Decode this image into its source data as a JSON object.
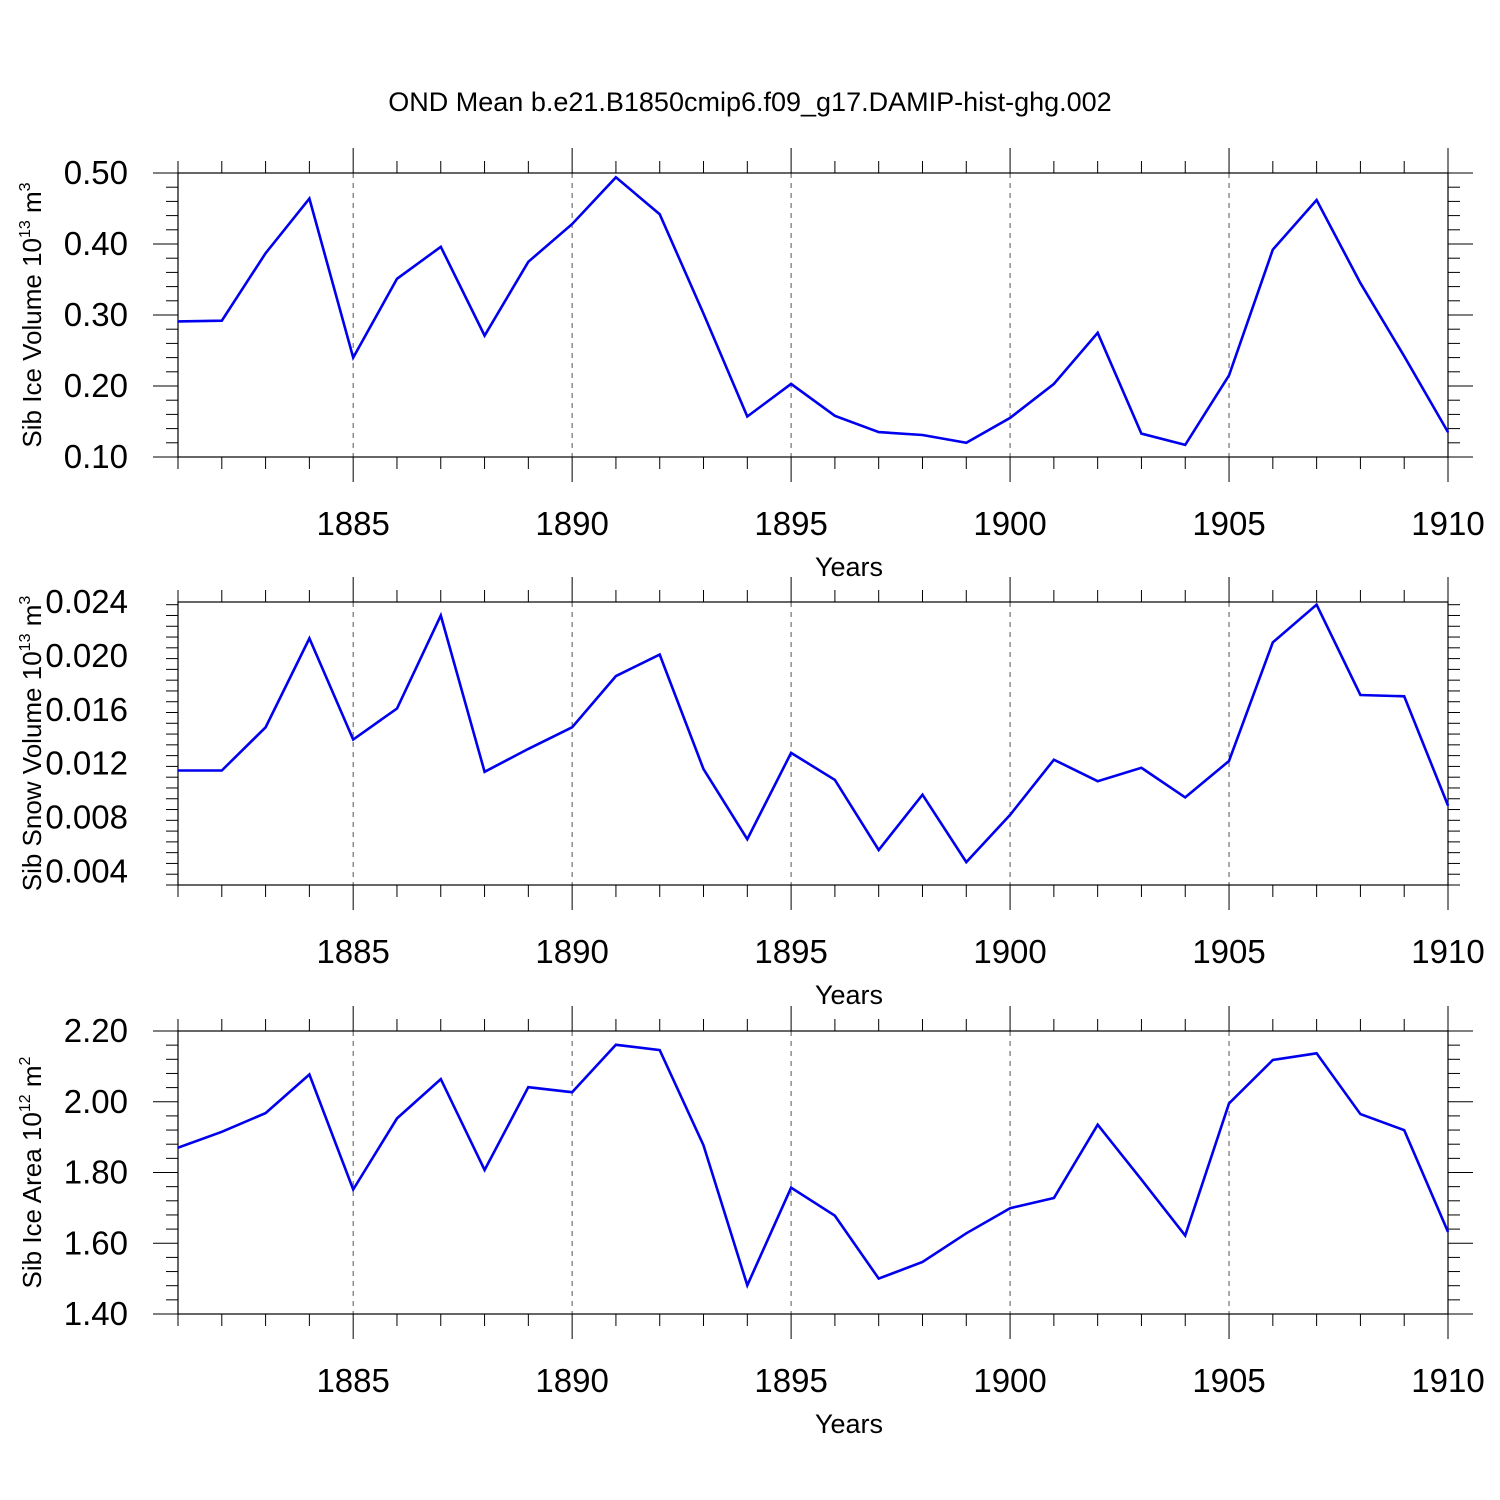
{
  "title": "OND Mean b.e21.B1850cmip6.f09_g17.DAMIP-hist-ghg.002",
  "line_color": "#0000ee",
  "chart_data": [
    {
      "type": "line",
      "ylabel": {
        "prefix": "Sib Ice Volume 10",
        "exp": "13",
        "unit": " m",
        "unit_exp": "3"
      },
      "xlabel": "Years",
      "xlim": [
        1881,
        1910
      ],
      "ylim": [
        0.1,
        0.5
      ],
      "yticks": [
        0.1,
        0.2,
        0.3,
        0.4,
        0.5
      ],
      "ytick_labels": [
        "0.10",
        "0.20",
        "0.30",
        "0.40",
        "0.50"
      ],
      "xticks": [
        1885,
        1890,
        1895,
        1900,
        1905,
        1910
      ],
      "xtick_labels": [
        "1885",
        "1890",
        "1895",
        "1900",
        "1905",
        "1910"
      ],
      "grid": "vertical-dashed",
      "x": [
        1881,
        1882,
        1883,
        1884,
        1885,
        1886,
        1887,
        1888,
        1889,
        1890,
        1891,
        1892,
        1893,
        1894,
        1895,
        1896,
        1897,
        1898,
        1899,
        1900,
        1901,
        1902,
        1903,
        1904,
        1905,
        1906,
        1907,
        1908,
        1909,
        1910
      ],
      "y": [
        0.291,
        0.292,
        0.387,
        0.464,
        0.24,
        0.351,
        0.396,
        0.271,
        0.375,
        0.428,
        0.494,
        0.442,
        0.302,
        0.157,
        0.203,
        0.158,
        0.135,
        0.131,
        0.12,
        0.155,
        0.203,
        0.275,
        0.133,
        0.117,
        0.215,
        0.392,
        0.462,
        0.345,
        0.242,
        0.135
      ]
    },
    {
      "type": "line",
      "ylabel": {
        "prefix": "Sib Snow Volume 10",
        "exp": "13",
        "unit": " m",
        "unit_exp": "3"
      },
      "xlabel": "Years",
      "xlim": [
        1881,
        1910
      ],
      "ylim": [
        0.003,
        0.024
      ],
      "yticks": [
        0.004,
        0.008,
        0.012,
        0.016,
        0.02,
        0.024
      ],
      "ytick_labels": [
        "0.004",
        "0.008",
        "0.012",
        "0.016",
        "0.020",
        "0.024"
      ],
      "xticks": [
        1885,
        1890,
        1895,
        1900,
        1905,
        1910
      ],
      "xtick_labels": [
        "1885",
        "1890",
        "1895",
        "1900",
        "1905",
        "1910"
      ],
      "grid": "vertical-dashed",
      "x": [
        1881,
        1882,
        1883,
        1884,
        1885,
        1886,
        1887,
        1888,
        1889,
        1890,
        1891,
        1892,
        1893,
        1894,
        1895,
        1896,
        1897,
        1898,
        1899,
        1900,
        1901,
        1902,
        1903,
        1904,
        1905,
        1906,
        1907,
        1908,
        1909,
        1910
      ],
      "y": [
        0.0115,
        0.0115,
        0.0147,
        0.0213,
        0.0138,
        0.0161,
        0.023,
        0.0114,
        0.0131,
        0.0147,
        0.0185,
        0.0201,
        0.0116,
        0.0064,
        0.0128,
        0.0108,
        0.0056,
        0.0097,
        0.0047,
        0.0082,
        0.0123,
        0.0107,
        0.0117,
        0.0095,
        0.0122,
        0.021,
        0.0238,
        0.0171,
        0.017,
        0.0089
      ]
    },
    {
      "type": "line",
      "ylabel": {
        "prefix": "Sib Ice Area 10",
        "exp": "12",
        "unit": " m",
        "unit_exp": "2"
      },
      "xlabel": "Years",
      "xlim": [
        1881,
        1910
      ],
      "ylim": [
        1.4,
        2.2
      ],
      "yticks": [
        1.4,
        1.6,
        1.8,
        2.0,
        2.2
      ],
      "ytick_labels": [
        "1.40",
        "1.60",
        "1.80",
        "2.00",
        "2.20"
      ],
      "xticks": [
        1885,
        1890,
        1895,
        1900,
        1905,
        1910
      ],
      "xtick_labels": [
        "1885",
        "1890",
        "1895",
        "1900",
        "1905",
        "1910"
      ],
      "grid": "vertical-dashed",
      "x": [
        1881,
        1882,
        1883,
        1884,
        1885,
        1886,
        1887,
        1888,
        1889,
        1890,
        1891,
        1892,
        1893,
        1894,
        1895,
        1896,
        1897,
        1898,
        1899,
        1900,
        1901,
        1902,
        1903,
        1904,
        1905,
        1906,
        1907,
        1908,
        1909,
        1910
      ],
      "y": [
        1.87,
        1.915,
        1.968,
        2.077,
        1.752,
        1.953,
        2.064,
        1.807,
        2.041,
        2.027,
        2.161,
        2.146,
        1.877,
        1.481,
        1.757,
        1.678,
        1.5,
        1.547,
        1.628,
        1.699,
        1.728,
        1.935,
        1.78,
        1.622,
        1.995,
        2.118,
        2.137,
        1.965,
        1.92,
        1.632
      ]
    }
  ]
}
